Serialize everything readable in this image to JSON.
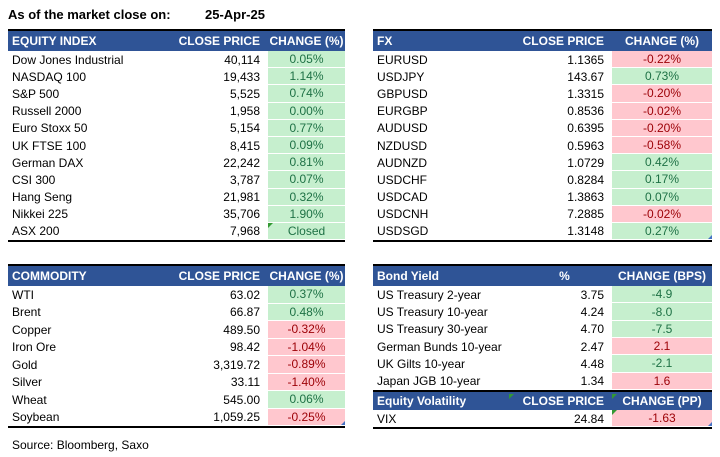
{
  "meta": {
    "as_of_label": "As of the market close on:",
    "date": "25-Apr-25",
    "source": "Source: Bloomberg, Saxo"
  },
  "colors": {
    "header_bg": "#2F5496",
    "header_text": "#FFFFFF",
    "positive_bg": "#C6EFCE",
    "positive_text": "#1E7145",
    "negative_bg": "#FFC7CE",
    "negative_text": "#9C0006",
    "error_indicator": "#339933",
    "fill_handle": "#4472C4"
  },
  "tables": {
    "equity": {
      "title": "EQUITY INDEX",
      "col2": "CLOSE PRICE",
      "col3": "CHANGE (%)",
      "rows": [
        {
          "name": "Dow Jones Industrial",
          "price": "40,114",
          "change": "0.05%",
          "dir": "pos"
        },
        {
          "name": "NASDAQ 100",
          "price": "19,433",
          "change": "1.14%",
          "dir": "pos"
        },
        {
          "name": "S&P 500",
          "price": "5,525",
          "change": "0.74%",
          "dir": "pos"
        },
        {
          "name": "Russell 2000",
          "price": "1,958",
          "change": "0.00%",
          "dir": "pos"
        },
        {
          "name": "Euro Stoxx 50",
          "price": "5,154",
          "change": "0.77%",
          "dir": "pos"
        },
        {
          "name": "UK FTSE 100",
          "price": "8,415",
          "change": "0.09%",
          "dir": "pos"
        },
        {
          "name": "German DAX",
          "price": "22,242",
          "change": "0.81%",
          "dir": "pos"
        },
        {
          "name": "CSI 300",
          "price": "3,787",
          "change": "0.07%",
          "dir": "pos"
        },
        {
          "name": "Hang Seng",
          "price": "21,981",
          "change": "0.32%",
          "dir": "pos"
        },
        {
          "name": "Nikkei 225",
          "price": "35,706",
          "change": "1.90%",
          "dir": "pos"
        },
        {
          "name": "ASX 200",
          "price": "7,968",
          "change": "Closed",
          "dir": "pos",
          "tl": true
        }
      ]
    },
    "fx": {
      "title": "FX",
      "col2": "CLOSE PRICE",
      "col3": "CHANGE (%)",
      "rows": [
        {
          "name": "EURUSD",
          "price": "1.1365",
          "change": "-0.22%",
          "dir": "neg"
        },
        {
          "name": "USDJPY",
          "price": "143.67",
          "change": "0.73%",
          "dir": "pos"
        },
        {
          "name": "GBPUSD",
          "price": "1.3315",
          "change": "-0.20%",
          "dir": "neg"
        },
        {
          "name": "EURGBP",
          "price": "0.8536",
          "change": "-0.02%",
          "dir": "neg"
        },
        {
          "name": "AUDUSD",
          "price": "0.6395",
          "change": "-0.20%",
          "dir": "neg"
        },
        {
          "name": "NZDUSD",
          "price": "0.5963",
          "change": "-0.58%",
          "dir": "neg"
        },
        {
          "name": "AUDNZD",
          "price": "1.0729",
          "change": "0.42%",
          "dir": "pos"
        },
        {
          "name": "USDCHF",
          "price": "0.8284",
          "change": "0.17%",
          "dir": "pos"
        },
        {
          "name": "USDCAD",
          "price": "1.3863",
          "change": "0.07%",
          "dir": "pos"
        },
        {
          "name": "USDCNH",
          "price": "7.2885",
          "change": "-0.02%",
          "dir": "neg"
        },
        {
          "name": "USDSGD",
          "price": "1.3148",
          "change": "0.27%",
          "dir": "pos",
          "br": true
        }
      ]
    },
    "commodity": {
      "title": "COMMODITY",
      "col2": "CLOSE PRICE",
      "col3": "CHANGE (%)",
      "rows": [
        {
          "name": "WTI",
          "price": "63.02",
          "change": "0.37%",
          "dir": "pos"
        },
        {
          "name": "Brent",
          "price": "66.87",
          "change": "0.48%",
          "dir": "pos"
        },
        {
          "name": "Copper",
          "price": "489.50",
          "change": "-0.32%",
          "dir": "neg"
        },
        {
          "name": "Iron Ore",
          "price": "98.42",
          "change": "-1.04%",
          "dir": "neg"
        },
        {
          "name": "Gold",
          "price": "3,319.72",
          "change": "-0.89%",
          "dir": "neg"
        },
        {
          "name": "Silver",
          "price": "33.11",
          "change": "-1.40%",
          "dir": "neg"
        },
        {
          "name": "Wheat",
          "price": "545.00",
          "change": "0.06%",
          "dir": "pos"
        },
        {
          "name": "Soybean",
          "price": "1,059.25",
          "change": "-0.25%",
          "dir": "neg",
          "br": true
        }
      ]
    },
    "bond": {
      "title": "Bond Yield",
      "col2": "%",
      "col3": "CHANGE (BPS)",
      "rows": [
        {
          "name": "US Treasury 2-year",
          "price": "3.75",
          "change": "-4.9",
          "dir": "pos"
        },
        {
          "name": "US Treasury 10-year",
          "price": "4.24",
          "change": "-8.0",
          "dir": "pos"
        },
        {
          "name": "US Treasury 30-year",
          "price": "4.70",
          "change": "-7.5",
          "dir": "pos"
        },
        {
          "name": "German Bunds 10-year",
          "price": "2.47",
          "change": "2.1",
          "dir": "neg"
        },
        {
          "name": "UK Gilts 10-year",
          "price": "4.48",
          "change": "-2.1",
          "dir": "pos"
        },
        {
          "name": "Japan JGB 10-year",
          "price": "1.34",
          "change": "1.6",
          "dir": "neg"
        }
      ]
    },
    "volatility": {
      "title": "Equity Volatility",
      "col2": "CLOSE PRICE",
      "col3": "CHANGE (PP)",
      "rows": [
        {
          "name": "VIX",
          "price": "24.84",
          "change": "-1.63",
          "dir": "neg",
          "tl": true,
          "br": true
        }
      ]
    }
  }
}
